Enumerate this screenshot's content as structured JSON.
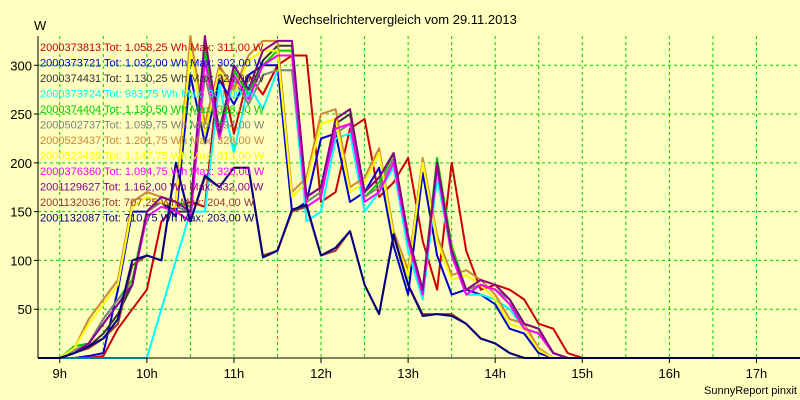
{
  "chart_data": {
    "type": "line",
    "title": "Wechselrichtervergleich vom 29.11.2013",
    "ylabel": "W",
    "xlabel": "",
    "credit": "SunnyReport pinxit",
    "grid": true,
    "legend_position": "top-left",
    "ylim": [
      0,
      330
    ],
    "xlim": [
      8.75,
      17.5
    ],
    "y_ticks": [
      50,
      100,
      150,
      200,
      250,
      300
    ],
    "x_ticks": [
      {
        "value": 9,
        "label": "9h"
      },
      {
        "value": 10,
        "label": "10h"
      },
      {
        "value": 11,
        "label": "11h"
      },
      {
        "value": 12,
        "label": "12h"
      },
      {
        "value": 13,
        "label": "13h"
      },
      {
        "value": 14,
        "label": "14h"
      },
      {
        "value": 15,
        "label": "15h"
      },
      {
        "value": 16,
        "label": "16h"
      },
      {
        "value": 17,
        "label": "17h"
      }
    ],
    "x": [
      8.75,
      9.0,
      9.167,
      9.333,
      9.5,
      9.667,
      9.833,
      10.0,
      10.167,
      10.333,
      10.5,
      10.667,
      10.833,
      11.0,
      11.167,
      11.333,
      11.5,
      11.667,
      11.833,
      12.0,
      12.167,
      12.333,
      12.5,
      12.667,
      12.833,
      13.0,
      13.167,
      13.333,
      13.5,
      13.667,
      13.833,
      14.0,
      14.167,
      14.333,
      14.5,
      14.667,
      14.833,
      15.0,
      15.167,
      15.333,
      15.5,
      15.667,
      15.833,
      16.0,
      16.167,
      16.333,
      16.5,
      16.667,
      16.833,
      17.0,
      17.167,
      17.5
    ],
    "series": [
      {
        "name": "2000373813",
        "legend": "2000373813 Tot: 1.058,25 Wh Max: 311,00 W",
        "color": "#cc0000",
        "values": [
          0,
          0,
          0,
          0,
          2,
          30,
          50,
          70,
          140,
          155,
          160,
          155,
          300,
          230,
          290,
          270,
          300,
          310,
          310,
          160,
          170,
          235,
          245,
          165,
          180,
          205,
          120,
          70,
          200,
          110,
          70,
          75,
          70,
          60,
          35,
          30,
          5,
          0,
          0,
          0,
          0,
          0,
          0,
          0,
          0,
          0,
          0,
          0,
          0,
          0,
          0,
          0
        ]
      },
      {
        "name": "2000373721",
        "legend": "2000373721 Tot: 1.032,00 Wh Max: 302,00 W",
        "color": "#0000cc",
        "values": [
          0,
          0,
          0,
          2,
          5,
          70,
          150,
          150,
          160,
          145,
          290,
          220,
          285,
          260,
          290,
          300,
          300,
          150,
          160,
          225,
          230,
          160,
          170,
          195,
          115,
          65,
          190,
          105,
          65,
          70,
          65,
          55,
          30,
          25,
          5,
          0,
          0,
          0,
          0,
          0,
          0,
          0,
          0,
          0,
          0,
          0,
          0,
          0,
          0,
          0,
          0,
          0
        ]
      },
      {
        "name": "2000374431",
        "legend": "2000374431 Tot: 1.130,25 Wh Max: 324,00 W",
        "color": "#333333",
        "values": [
          0,
          0,
          5,
          12,
          25,
          45,
          75,
          150,
          160,
          150,
          150,
          320,
          225,
          295,
          270,
          305,
          320,
          320,
          165,
          175,
          240,
          250,
          170,
          185,
          210,
          125,
          70,
          200,
          110,
          70,
          75,
          70,
          60,
          35,
          30,
          5,
          0,
          0,
          0,
          0,
          0,
          0,
          0,
          0,
          0,
          0,
          0,
          0,
          0,
          0,
          0,
          0
        ]
      },
      {
        "name": "2000373724",
        "legend": "2000373724 Tot: 983,75 Wh Max: 301,00 W",
        "color": "#00ffff",
        "values": [
          0,
          0,
          0,
          0,
          0,
          0,
          0,
          0,
          50,
          100,
          150,
          150,
          280,
          210,
          280,
          255,
          295,
          295,
          140,
          150,
          225,
          230,
          150,
          170,
          195,
          110,
          60,
          185,
          105,
          65,
          65,
          60,
          50,
          30,
          25,
          5,
          0,
          0,
          0,
          0,
          0,
          0,
          0,
          0,
          0,
          0,
          0,
          0,
          0,
          0,
          0,
          0
        ]
      },
      {
        "name": "2000374404",
        "legend": "2000374404 Tot: 1.130,50 Wh Max: 318,00 W",
        "color": "#00cc00",
        "values": [
          0,
          0,
          12,
          15,
          40,
          60,
          80,
          150,
          165,
          160,
          155,
          315,
          235,
          295,
          270,
          300,
          315,
          315,
          160,
          170,
          245,
          255,
          165,
          180,
          210,
          125,
          70,
          205,
          115,
          70,
          75,
          70,
          60,
          30,
          25,
          5,
          0,
          0,
          0,
          0,
          0,
          0,
          0,
          0,
          0,
          0,
          0,
          0,
          0,
          0,
          0,
          0
        ]
      },
      {
        "name": "2000502737",
        "legend": "2000502737 Tot: 1.099,75 Wh Max: 294,00 W",
        "color": "#808080",
        "values": [
          0,
          0,
          8,
          15,
          40,
          60,
          75,
          150,
          160,
          155,
          150,
          290,
          225,
          285,
          260,
          290,
          295,
          295,
          160,
          170,
          230,
          240,
          165,
          175,
          205,
          120,
          70,
          195,
          110,
          70,
          75,
          70,
          60,
          35,
          30,
          5,
          0,
          0,
          0,
          0,
          0,
          0,
          0,
          0,
          0,
          0,
          0,
          0,
          0,
          0,
          0,
          0
        ]
      },
      {
        "name": "2000523437",
        "legend": "2000523437 Tot: 1.201,75 Wh Max: 326,00 W",
        "color": "#cc8833",
        "values": [
          0,
          0,
          10,
          40,
          60,
          80,
          160,
          170,
          165,
          160,
          330,
          240,
          300,
          275,
          310,
          325,
          325,
          170,
          185,
          250,
          255,
          175,
          185,
          215,
          130,
          90,
          205,
          125,
          85,
          90,
          80,
          65,
          40,
          35,
          10,
          0,
          0,
          0,
          0,
          0,
          0,
          0,
          0,
          0,
          0,
          0,
          0,
          0,
          0,
          0,
          0,
          0
        ]
      },
      {
        "name": "2000523439",
        "legend": "2000523439 Tot: 1.147,75 Wh Max: 313,00 W",
        "color": "#ffff00",
        "values": [
          0,
          0,
          10,
          35,
          55,
          75,
          155,
          165,
          160,
          155,
          315,
          230,
          295,
          270,
          305,
          315,
          315,
          165,
          180,
          240,
          245,
          170,
          180,
          210,
          125,
          85,
          200,
          120,
          80,
          85,
          75,
          60,
          35,
          30,
          8,
          0,
          0,
          0,
          0,
          0,
          0,
          0,
          0,
          0,
          0,
          0,
          0,
          0,
          0,
          0,
          0,
          0
        ]
      },
      {
        "name": "2000376360",
        "legend": "2000376360 Tot: 1.094,75 Wh Max: 320,00 W",
        "color": "#ff00ff",
        "values": [
          0,
          0,
          5,
          15,
          35,
          55,
          75,
          145,
          155,
          150,
          140,
          305,
          225,
          290,
          265,
          300,
          310,
          310,
          155,
          165,
          235,
          240,
          160,
          170,
          200,
          120,
          65,
          195,
          105,
          65,
          75,
          70,
          55,
          30,
          25,
          5,
          0,
          0,
          0,
          0,
          0,
          0,
          0,
          0,
          0,
          0,
          0,
          0,
          0,
          0,
          0,
          0
        ]
      },
      {
        "name": "2001129627",
        "legend": "2001129627 Tot: 1.162,00 Wh Max: 332,00 W",
        "color": "#880088",
        "values": [
          0,
          0,
          5,
          15,
          35,
          55,
          75,
          150,
          165,
          160,
          150,
          330,
          230,
          300,
          275,
          315,
          325,
          325,
          165,
          175,
          245,
          255,
          170,
          185,
          210,
          125,
          70,
          200,
          110,
          70,
          80,
          75,
          60,
          35,
          30,
          5,
          0,
          0,
          0,
          0,
          0,
          0,
          0,
          0,
          0,
          0,
          0,
          0,
          0,
          0,
          0,
          0
        ]
      },
      {
        "name": "2001132036",
        "legend": "2001132036 Tot: 707,25 Wh Max: 204,00 W",
        "color": "#993333",
        "values": [
          0,
          0,
          5,
          10,
          20,
          35,
          95,
          105,
          100,
          200,
          140,
          185,
          175,
          195,
          195,
          105,
          110,
          150,
          155,
          105,
          110,
          130,
          75,
          45,
          125,
          75,
          45,
          45,
          45,
          35,
          20,
          15,
          5,
          0,
          0,
          0,
          0,
          0,
          0,
          0,
          0,
          0,
          0,
          0,
          0,
          0,
          0,
          0,
          0,
          0,
          0,
          0
        ]
      },
      {
        "name": "2001132087",
        "legend": "2001132087 Tot: 710,75 Wh Max: 203,00 W",
        "color": "#000080",
        "values": [
          0,
          0,
          5,
          12,
          20,
          40,
          100,
          105,
          100,
          200,
          140,
          187,
          175,
          195,
          195,
          103,
          110,
          152,
          157,
          105,
          113,
          130,
          75,
          45,
          127,
          75,
          43,
          45,
          43,
          35,
          20,
          15,
          5,
          0,
          0,
          0,
          0,
          0,
          0,
          0,
          0,
          0,
          0,
          0,
          0,
          0,
          0,
          0,
          0,
          0,
          0,
          0
        ]
      }
    ]
  }
}
